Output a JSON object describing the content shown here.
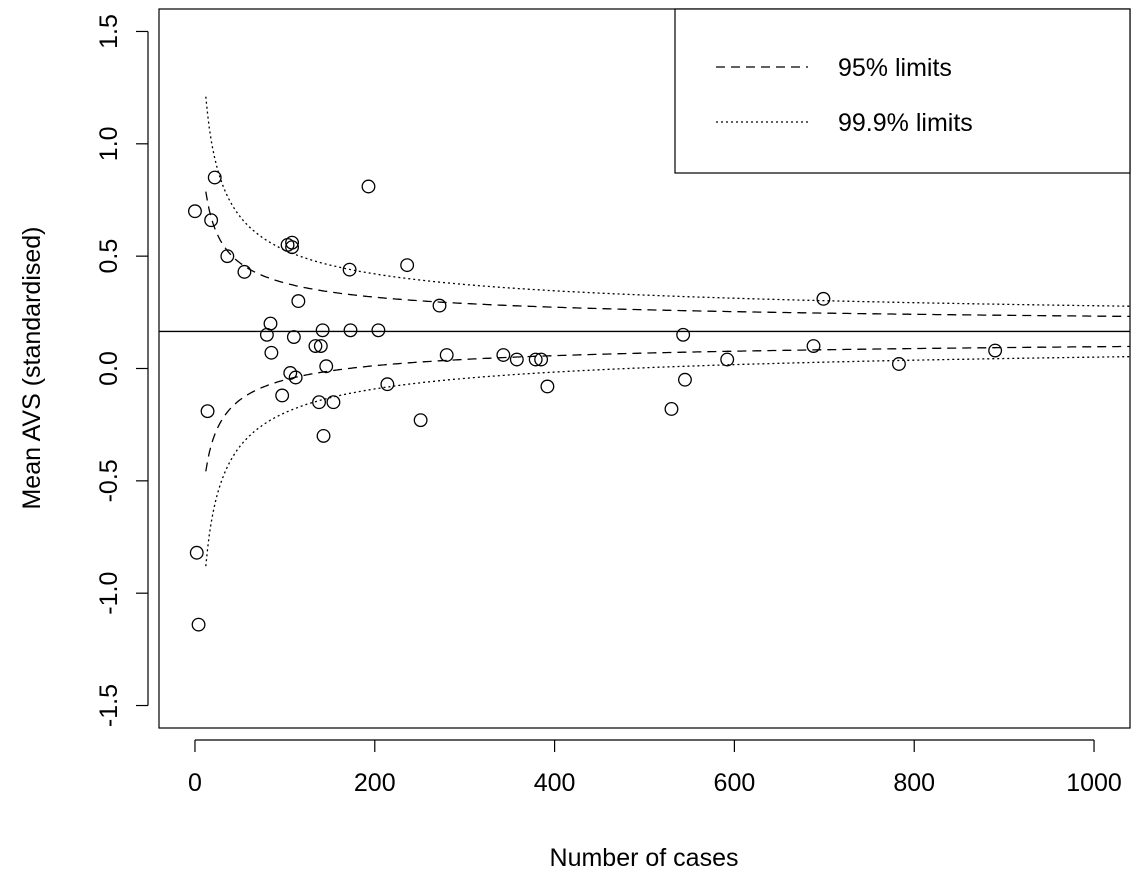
{
  "chart_data": {
    "type": "scatter",
    "title": "",
    "xlabel": "Number of cases",
    "ylabel": "Mean AVS (standardised)",
    "xlim": [
      -40,
      1040
    ],
    "ylim": [
      -1.6,
      1.6
    ],
    "xticks": [
      0,
      200,
      400,
      600,
      800,
      1000
    ],
    "yticks": [
      -1.5,
      -1.0,
      -0.5,
      0.0,
      0.5,
      1.0,
      1.5
    ],
    "ytick_labels": [
      "-1.5",
      "-1.0",
      "-0.5",
      "0.0",
      "0.5",
      "1.0",
      "1.5"
    ],
    "grid": false,
    "reference_line": 0.165,
    "legend": {
      "position": "top-right",
      "entries": [
        {
          "label": "95% limits",
          "style": "dashed"
        },
        {
          "label": "99.9% limits",
          "style": "dotted"
        }
      ]
    },
    "points": [
      [
        0,
        0.7
      ],
      [
        2,
        -0.82
      ],
      [
        4,
        -1.14
      ],
      [
        14,
        -0.19
      ],
      [
        18,
        0.66
      ],
      [
        22,
        0.85
      ],
      [
        36,
        0.5
      ],
      [
        55,
        0.43
      ],
      [
        80,
        0.15
      ],
      [
        84,
        0.2
      ],
      [
        85,
        0.07
      ],
      [
        97,
        -0.12
      ],
      [
        103,
        0.55
      ],
      [
        106,
        -0.02
      ],
      [
        108,
        0.56
      ],
      [
        108,
        0.54
      ],
      [
        110,
        0.14
      ],
      [
        112,
        -0.04
      ],
      [
        115,
        0.3
      ],
      [
        134,
        0.1
      ],
      [
        138,
        -0.15
      ],
      [
        140,
        0.1
      ],
      [
        142,
        0.17
      ],
      [
        143,
        -0.3
      ],
      [
        146,
        0.01
      ],
      [
        154,
        -0.15
      ],
      [
        172,
        0.44
      ],
      [
        173,
        0.17
      ],
      [
        193,
        0.81
      ],
      [
        204,
        0.17
      ],
      [
        214,
        -0.07
      ],
      [
        236,
        0.46
      ],
      [
        251,
        -0.23
      ],
      [
        272,
        0.28
      ],
      [
        280,
        0.06
      ],
      [
        343,
        0.06
      ],
      [
        358,
        0.04
      ],
      [
        379,
        0.04
      ],
      [
        385,
        0.04
      ],
      [
        392,
        -0.08
      ],
      [
        530,
        -0.18
      ],
      [
        543,
        0.15
      ],
      [
        545,
        -0.05
      ],
      [
        592,
        0.04
      ],
      [
        688,
        0.1
      ],
      [
        699,
        0.31
      ],
      [
        783,
        0.02
      ],
      [
        890,
        0.08
      ]
    ],
    "series": [
      {
        "name": "95% limits",
        "style": "dashed",
        "center": 0.165,
        "z": 1.96,
        "scale": 1.1,
        "x_start": 12
      },
      {
        "name": "99.9% limits",
        "style": "dotted",
        "center": 0.165,
        "z": 3.29,
        "scale": 1.1,
        "x_start": 12
      }
    ]
  }
}
